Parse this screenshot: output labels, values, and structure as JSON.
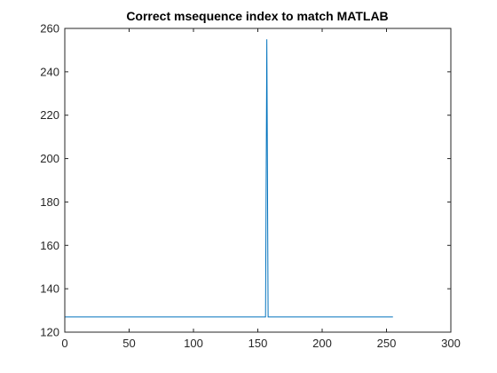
{
  "chart_data": {
    "type": "line",
    "title": "Correct msequence index to match MATLAB",
    "xlabel": "",
    "ylabel": "",
    "xlim": [
      0,
      300
    ],
    "ylim": [
      120,
      260
    ],
    "xticks": [
      0,
      50,
      100,
      150,
      200,
      250,
      300
    ],
    "yticks": [
      120,
      140,
      160,
      180,
      200,
      220,
      240,
      260
    ],
    "xtick_labels": [
      "0",
      "50",
      "100",
      "150",
      "200",
      "250",
      "300"
    ],
    "ytick_labels": [
      "120",
      "140",
      "160",
      "180",
      "200",
      "220",
      "240",
      "260"
    ],
    "grid": false,
    "legend": "none",
    "series": [
      {
        "color": "#0072BD",
        "x": [
          0,
          156,
          157,
          158,
          255
        ],
        "y": [
          127,
          127,
          255,
          127,
          127
        ]
      }
    ]
  }
}
